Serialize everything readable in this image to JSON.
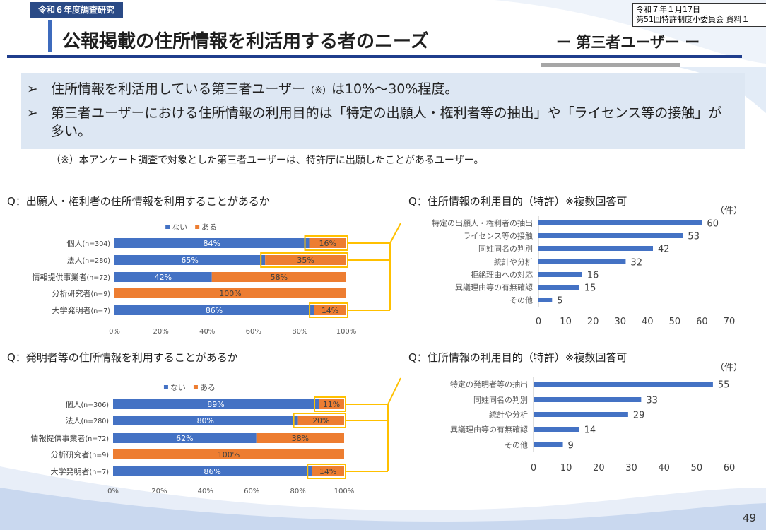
{
  "header": {
    "tag": "令和６年度調査研究",
    "meta_line1": "令和７年１月17日",
    "meta_line2": "第51回特許制度小委員会 資料１",
    "title": "公報掲載の住所情報を利活用する者のニーズ",
    "subtitle": "ー 第三者ユーザー ー"
  },
  "summary": {
    "bullet_glyph": "➢",
    "b1_pre": "住所情報を利活用している第三者ユーザー",
    "b1_note": "（※）",
    "b1_post": "は10%～30%程度。",
    "b2": "第三者ユーザーにおける住所情報の利用目的は「特定の出願人・権利者等の抽出」や「ライセンス等の接触」が多い。",
    "footnote": "（※）本アンケート調査で対象とした第三者ユーザーは、特許庁に出願したことがあるユーザー。"
  },
  "colors": {
    "no": "#4472c4",
    "yes": "#ed7d31",
    "highlight": "#ffc000"
  },
  "page_number": "49",
  "chart_data": [
    {
      "type": "bar",
      "title": "Q：出願人・権利者の住所情報を利用することがあるか",
      "stacked": true,
      "orientation": "horizontal",
      "categories": [
        "個人",
        "法人",
        "情報提供事業者",
        "分析研究者",
        "大学発明者"
      ],
      "n_labels": [
        "(n=304)",
        "(n=280)",
        "(n=72)",
        "(n=9)",
        "(n=7)"
      ],
      "series": [
        {
          "name": "ない",
          "values": [
            84,
            65,
            42,
            0,
            86
          ]
        },
        {
          "name": "ある",
          "values": [
            16,
            35,
            58,
            100,
            14
          ]
        }
      ],
      "xticks": [
        "0%",
        "20%",
        "40%",
        "60%",
        "80%",
        "100%"
      ],
      "xlim": [
        0,
        100
      ],
      "legend": "top",
      "highlighted": [
        0,
        1,
        4
      ]
    },
    {
      "type": "bar",
      "title": "Q：住所情報の利用目的（特許）※複数回答可",
      "unit": "（件）",
      "orientation": "horizontal",
      "categories": [
        "特定の出願人・権利者の抽出",
        "ライセンス等の接触",
        "同姓同名の判別",
        "統計や分析",
        "拒絶理由への対応",
        "異議理由等の有無確認",
        "その他"
      ],
      "values": [
        60,
        53,
        42,
        32,
        16,
        15,
        5
      ],
      "xticks": [
        "0",
        "10",
        "20",
        "30",
        "40",
        "50",
        "60",
        "70"
      ],
      "xlim": [
        0,
        70
      ]
    },
    {
      "type": "bar",
      "title": "Q：発明者等の住所情報を利用することがあるか",
      "stacked": true,
      "orientation": "horizontal",
      "categories": [
        "個人",
        "法人",
        "情報提供事業者",
        "分析研究者",
        "大学発明者"
      ],
      "n_labels": [
        "(n=306)",
        "(n=280)",
        "(n=72)",
        "(n=9)",
        "(n=7)"
      ],
      "series": [
        {
          "name": "ない",
          "values": [
            89,
            80,
            62,
            0,
            86
          ]
        },
        {
          "name": "ある",
          "values": [
            11,
            20,
            38,
            100,
            14
          ]
        }
      ],
      "xticks": [
        "0%",
        "20%",
        "40%",
        "60%",
        "80%",
        "100%"
      ],
      "xlim": [
        0,
        100
      ],
      "legend": "top",
      "highlighted": [
        0,
        1,
        4
      ]
    },
    {
      "type": "bar",
      "title": "Q：住所情報の利用目的（特許）※複数回答可",
      "unit": "（件）",
      "orientation": "horizontal",
      "categories": [
        "特定の発明者等の抽出",
        "同姓同名の判別",
        "統計や分析",
        "異議理由等の有無確認",
        "その他"
      ],
      "values": [
        55,
        33,
        29,
        14,
        9
      ],
      "xticks": [
        "0",
        "10",
        "20",
        "30",
        "40",
        "50",
        "60"
      ],
      "xlim": [
        0,
        60
      ]
    }
  ]
}
